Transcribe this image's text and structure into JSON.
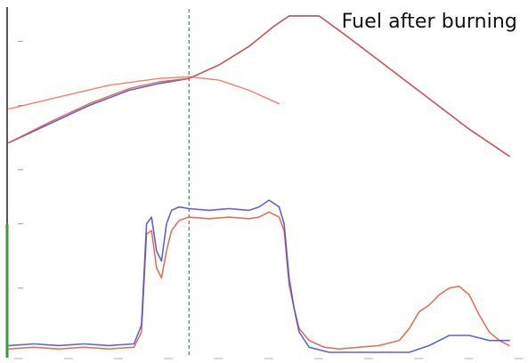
{
  "chart_data": {
    "type": "line",
    "title": "Fuel after burning",
    "xlabel": "",
    "ylabel": "",
    "xlim": [
      0,
      100
    ],
    "ylim": [
      0,
      100
    ],
    "grid": false,
    "colors": {
      "series_a": "#e8573c",
      "series_b": "#4a55c4",
      "left_axis_top": "#555555",
      "left_axis_bottom": "#3c9a3c",
      "marker_line": "#3c8a6a"
    },
    "marker_x": 36,
    "series": [
      {
        "values": [
          [
            0,
            62
          ],
          [
            8,
            67.5
          ],
          [
            16,
            73
          ],
          [
            24,
            77.5
          ],
          [
            30,
            79.5
          ],
          [
            36,
            81
          ],
          [
            42,
            85
          ],
          [
            48,
            90.5
          ],
          [
            53,
            96.5
          ],
          [
            56,
            99.5
          ],
          [
            62,
            99.5
          ],
          [
            68,
            93
          ],
          [
            76,
            84
          ],
          [
            84,
            75
          ],
          [
            92,
            66
          ],
          [
            100,
            58
          ]
        ]
      },
      {
        "values": [
          [
            0,
            62
          ],
          [
            8,
            68
          ],
          [
            16,
            73.5
          ],
          [
            24,
            78
          ],
          [
            30,
            80
          ],
          [
            36,
            81
          ],
          [
            42,
            85
          ],
          [
            48,
            90.5
          ],
          [
            53,
            96.5
          ],
          [
            56,
            99.5
          ],
          [
            62,
            99.5
          ],
          [
            68,
            93
          ],
          [
            76,
            84
          ],
          [
            84,
            75
          ],
          [
            92,
            66
          ],
          [
            100,
            58
          ]
        ]
      },
      {
        "values": [
          [
            0,
            72
          ],
          [
            10,
            75.5
          ],
          [
            20,
            79
          ],
          [
            30,
            81
          ],
          [
            36,
            81.5
          ],
          [
            42,
            80.5
          ],
          [
            48,
            77.5
          ],
          [
            54,
            73.5
          ]
        ]
      },
      {
        "values": [
          [
            0,
            1
          ],
          [
            5,
            1.5
          ],
          [
            10,
            1
          ],
          [
            15,
            1.5
          ],
          [
            20,
            1
          ],
          [
            25,
            1.5
          ],
          [
            26.5,
            6
          ],
          [
            27.5,
            35
          ],
          [
            28.5,
            36
          ],
          [
            29.5,
            25
          ],
          [
            30.5,
            22
          ],
          [
            31.5,
            30
          ],
          [
            32.5,
            36
          ],
          [
            34,
            39
          ],
          [
            36,
            40
          ],
          [
            40,
            39.5
          ],
          [
            44,
            40
          ],
          [
            48,
            39.5
          ],
          [
            50,
            40
          ],
          [
            52,
            41.5
          ],
          [
            54,
            40
          ],
          [
            55,
            36
          ],
          [
            56,
            20
          ],
          [
            57,
            13
          ],
          [
            58,
            7
          ],
          [
            60,
            3.5
          ],
          [
            63,
            1.5
          ],
          [
            66,
            1
          ],
          [
            70,
            1.5
          ],
          [
            74,
            2
          ],
          [
            78,
            3.5
          ],
          [
            80,
            7
          ],
          [
            82,
            12
          ],
          [
            84,
            14
          ],
          [
            86,
            17
          ],
          [
            88,
            19
          ],
          [
            90,
            19.5
          ],
          [
            92,
            17
          ],
          [
            94,
            11
          ],
          [
            96,
            6
          ],
          [
            98,
            3.5
          ],
          [
            100,
            2
          ]
        ]
      },
      {
        "values": [
          [
            0,
            2
          ],
          [
            5,
            2.5
          ],
          [
            10,
            2
          ],
          [
            15,
            2.5
          ],
          [
            20,
            2
          ],
          [
            25,
            2.5
          ],
          [
            26.5,
            8
          ],
          [
            27.5,
            38
          ],
          [
            28.5,
            40
          ],
          [
            29.5,
            30
          ],
          [
            30.5,
            27
          ],
          [
            31.5,
            38
          ],
          [
            32.5,
            42
          ],
          [
            34,
            43
          ],
          [
            36,
            42.5
          ],
          [
            40,
            42
          ],
          [
            44,
            42.5
          ],
          [
            48,
            42
          ],
          [
            50,
            43
          ],
          [
            52,
            45
          ],
          [
            54,
            43
          ],
          [
            55,
            38
          ],
          [
            56,
            22
          ],
          [
            57,
            13
          ],
          [
            58,
            6
          ],
          [
            60,
            1.5
          ],
          [
            64,
            0
          ],
          [
            70,
            0
          ],
          [
            76,
            0
          ],
          [
            80,
            0
          ],
          [
            84,
            2
          ],
          [
            88,
            5
          ],
          [
            92,
            5
          ],
          [
            96,
            3.5
          ],
          [
            100,
            3.5
          ]
        ]
      }
    ]
  }
}
